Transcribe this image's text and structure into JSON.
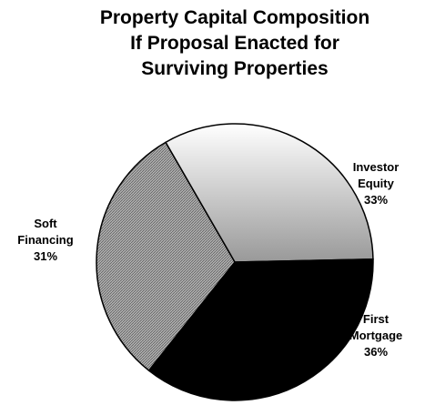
{
  "chart_data": {
    "type": "pie",
    "title": "Property Capital Composition\nIf Proposal Enacted for\nSurviving Properties",
    "categories": [
      "Investor Equity",
      "First Mortgage",
      "Soft Financing"
    ],
    "values": [
      33,
      36,
      31
    ],
    "value_labels": [
      "33%",
      "36%",
      "31%"
    ],
    "colors": [
      "#d4d4d4",
      "#000000",
      "#9a9a9a"
    ]
  }
}
